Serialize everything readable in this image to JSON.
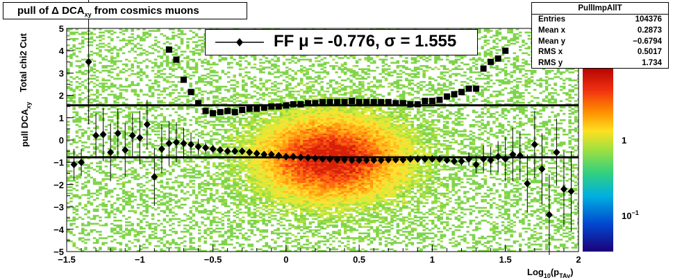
{
  "title": {
    "main": "pull of ",
    "delta": "Δ",
    "dca": " DCA",
    "sub": "xy",
    "rest": "  from cosmics muons"
  },
  "stats": {
    "name": "PullImpAllT",
    "rows": [
      {
        "label": "Entries",
        "value": "104376"
      },
      {
        "label": "Mean x",
        "value": "0.2873"
      },
      {
        "label": "Mean y",
        "value": "−0.6794"
      },
      {
        "label": "RMS x",
        "value": "0.5017"
      },
      {
        "label": "RMS y",
        "value": "1.734"
      }
    ]
  },
  "fit_label": "FF μ = -0.776, σ =   1.555",
  "axes": {
    "ylabel_main": "pull DCA",
    "ylabel_sub": "xy",
    "ylabel_extra": "Total chi2 Cut",
    "xlabel_main": "Log",
    "xlabel_sub1": "10",
    "xlabel_mid": "(p",
    "xlabel_sub2": "TAv",
    "xlabel_end": ")"
  },
  "colorbar_labels": [
    "1",
    "10"
  ],
  "colorbar_exp": "−1",
  "chart_data": {
    "type": "scatter",
    "xlim": [
      -1.5,
      2.0
    ],
    "ylim": [
      -5,
      5
    ],
    "xticks": [
      "−1.5",
      "−1",
      "−0.5",
      "0",
      "0.5",
      "1",
      "1.5",
      "2"
    ],
    "xtick_values": [
      -1.5,
      -1,
      -0.5,
      0,
      0.5,
      1,
      1.5,
      2
    ],
    "yticks": [
      "5",
      "4",
      "3",
      "2",
      "1",
      "0",
      "−1",
      "−2",
      "−3",
      "−4",
      "−5"
    ],
    "ytick_values": [
      5,
      4,
      3,
      2,
      1,
      0,
      -1,
      -2,
      -3,
      -4,
      -5
    ],
    "horizontal_lines": [
      1.555,
      -0.776
    ],
    "series": [
      {
        "name": "mean",
        "marker": "diamond",
        "x": [
          -1.45,
          -1.4,
          -1.35,
          -1.3,
          -1.25,
          -1.2,
          -1.15,
          -1.1,
          -1.05,
          -1.0,
          -0.95,
          -0.9,
          -0.85,
          -0.8,
          -0.75,
          -0.7,
          -0.65,
          -0.6,
          -0.55,
          -0.5,
          -0.45,
          -0.4,
          -0.35,
          -0.3,
          -0.25,
          -0.2,
          -0.15,
          -0.1,
          -0.05,
          0.0,
          0.05,
          0.1,
          0.15,
          0.2,
          0.25,
          0.3,
          0.35,
          0.4,
          0.45,
          0.5,
          0.55,
          0.6,
          0.65,
          0.7,
          0.75,
          0.8,
          0.85,
          0.9,
          0.95,
          1.0,
          1.05,
          1.1,
          1.15,
          1.2,
          1.25,
          1.3,
          1.35,
          1.4,
          1.45,
          1.5,
          1.55,
          1.6,
          1.65,
          1.7,
          1.75,
          1.8,
          1.85,
          1.9,
          1.95
        ],
        "y": [
          -1.1,
          -1.0,
          3.5,
          0.2,
          0.25,
          -0.55,
          0.3,
          -0.45,
          0.2,
          0.1,
          0.7,
          -1.65,
          -0.4,
          -0.15,
          -0.1,
          -0.15,
          -0.2,
          -0.3,
          -0.35,
          -0.4,
          -0.45,
          -0.5,
          -0.5,
          -0.5,
          -0.55,
          -0.6,
          -0.65,
          -0.65,
          -0.7,
          -0.75,
          -0.75,
          -0.78,
          -0.8,
          -0.82,
          -0.85,
          -0.85,
          -0.88,
          -0.88,
          -0.9,
          -0.9,
          -0.9,
          -0.9,
          -0.9,
          -0.88,
          -0.88,
          -0.88,
          -0.85,
          -0.85,
          -0.85,
          -0.85,
          -0.85,
          -0.9,
          -0.95,
          -0.95,
          -0.85,
          -1.1,
          -0.85,
          -0.9,
          -0.75,
          -0.85,
          -0.65,
          -0.7,
          -1.95,
          -0.2,
          -1.3,
          -3.35,
          -0.55,
          -2.2,
          -2.3
        ],
        "err": [
          0.7,
          0.6,
          2.8,
          1.0,
          1.2,
          1.3,
          1.1,
          1.2,
          1.0,
          1.2,
          1.1,
          1.3,
          1.1,
          1.0,
          0.9,
          0.7,
          0.5,
          0.35,
          0.25,
          0.2,
          0.15,
          0.12,
          0.1,
          0.08,
          0.06,
          0.05,
          0.05,
          0.04,
          0.03,
          0.03,
          0.03,
          0.03,
          0.03,
          0.03,
          0.03,
          0.03,
          0.03,
          0.03,
          0.03,
          0.03,
          0.03,
          0.03,
          0.03,
          0.03,
          0.03,
          0.04,
          0.04,
          0.05,
          0.05,
          0.06,
          0.08,
          0.1,
          0.15,
          0.2,
          0.3,
          0.4,
          0.6,
          0.6,
          0.7,
          1.0,
          1.2,
          1.1,
          1.3,
          1.5,
          1.6,
          1.8,
          1.5,
          1.7,
          1.8
        ]
      },
      {
        "name": "rms",
        "marker": "square",
        "x": [
          -0.8,
          -0.75,
          -0.7,
          -0.65,
          -0.6,
          -0.55,
          -0.5,
          -0.45,
          -0.4,
          -0.35,
          -0.3,
          -0.25,
          -0.2,
          -0.15,
          -0.1,
          -0.05,
          0.0,
          0.05,
          0.1,
          0.15,
          0.2,
          0.25,
          0.3,
          0.35,
          0.4,
          0.45,
          0.5,
          0.55,
          0.6,
          0.65,
          0.7,
          0.75,
          0.8,
          0.85,
          0.9,
          0.95,
          1.0,
          1.05,
          1.1,
          1.15,
          1.2,
          1.25,
          1.3,
          1.35,
          1.4,
          1.45,
          1.5
        ],
        "y": [
          4.05,
          3.6,
          2.7,
          2.15,
          1.65,
          1.3,
          1.2,
          1.25,
          1.3,
          1.25,
          1.35,
          1.4,
          1.4,
          1.45,
          1.5,
          1.5,
          1.55,
          1.6,
          1.6,
          1.65,
          1.65,
          1.7,
          1.7,
          1.7,
          1.7,
          1.75,
          1.7,
          1.7,
          1.7,
          1.7,
          1.7,
          1.65,
          1.65,
          1.6,
          1.6,
          1.75,
          1.75,
          1.8,
          1.95,
          2.05,
          2.15,
          2.3,
          2.3,
          3.2,
          3.5,
          3.65,
          4.0
        ]
      }
    ],
    "colorbar": {
      "scale": "log",
      "labels": [
        1,
        0.1
      ]
    }
  }
}
